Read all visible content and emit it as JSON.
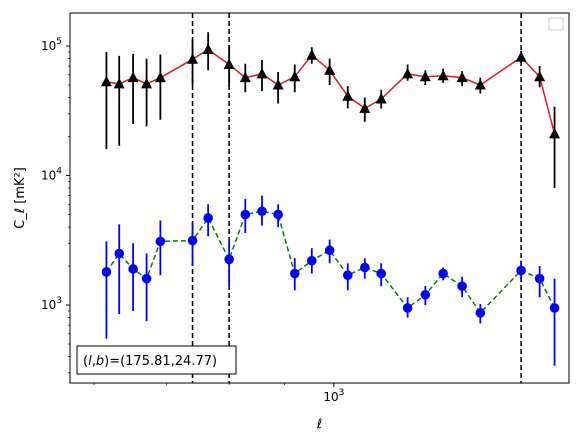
{
  "chart_data": {
    "type": "line",
    "x_scale": "log",
    "y_scale": "log",
    "xlim": [
      570,
      1650
    ],
    "ylim": [
      250,
      180000
    ],
    "xlabel": "ℓ",
    "ylabel": "C_ℓ [mK²]",
    "x_ticks": [
      {
        "value": 1000,
        "base": "10",
        "exp": "3"
      }
    ],
    "y_ticks": [
      {
        "value": 1000,
        "base": "10",
        "exp": "3"
      },
      {
        "value": 10000,
        "base": "10",
        "exp": "4"
      },
      {
        "value": 100000,
        "base": "10",
        "exp": "5"
      }
    ],
    "annotation": "(l,b)=(175.81,24.77)",
    "legend": {
      "location": "top-right",
      "entries": []
    },
    "vlines": [
      {
        "x": 740,
        "style": "dashed",
        "color": "#000000"
      },
      {
        "x": 800,
        "style": "dashed",
        "color": "#000000"
      },
      {
        "x": 1490,
        "style": "dashed",
        "color": "#000000"
      }
    ],
    "series": [
      {
        "line_color": "#e41a1c",
        "marker_color": "#000000",
        "marker": "triangle",
        "line_style": "solid",
        "points": [
          {
            "x": 616,
            "y": 53000,
            "lo": 16000,
            "hi": 90000
          },
          {
            "x": 633,
            "y": 51000,
            "lo": 17000,
            "hi": 84000
          },
          {
            "x": 652,
            "y": 57000,
            "lo": 25000,
            "hi": 87000
          },
          {
            "x": 671,
            "y": 51000,
            "lo": 24000,
            "hi": 80000
          },
          {
            "x": 691,
            "y": 57000,
            "lo": 27000,
            "hi": 86000
          },
          {
            "x": 740,
            "y": 79000,
            "lo": 50000,
            "hi": 112000
          },
          {
            "x": 765,
            "y": 94000,
            "lo": 65000,
            "hi": 128000
          },
          {
            "x": 800,
            "y": 72000,
            "lo": 48000,
            "hi": 100000
          },
          {
            "x": 828,
            "y": 57000,
            "lo": 44000,
            "hi": 73000
          },
          {
            "x": 858,
            "y": 61000,
            "lo": 45000,
            "hi": 78000
          },
          {
            "x": 888,
            "y": 50000,
            "lo": 36000,
            "hi": 63000
          },
          {
            "x": 920,
            "y": 58000,
            "lo": 44000,
            "hi": 72000
          },
          {
            "x": 954,
            "y": 85000,
            "lo": 73000,
            "hi": 98000
          },
          {
            "x": 991,
            "y": 65000,
            "lo": 50000,
            "hi": 80000
          },
          {
            "x": 1030,
            "y": 41000,
            "lo": 33000,
            "hi": 49000
          },
          {
            "x": 1068,
            "y": 33000,
            "lo": 26000,
            "hi": 40000
          },
          {
            "x": 1106,
            "y": 39000,
            "lo": 33000,
            "hi": 46000
          },
          {
            "x": 1170,
            "y": 61000,
            "lo": 54000,
            "hi": 72000
          },
          {
            "x": 1215,
            "y": 58000,
            "lo": 50000,
            "hi": 65000
          },
          {
            "x": 1262,
            "y": 59000,
            "lo": 52000,
            "hi": 67000
          },
          {
            "x": 1314,
            "y": 57000,
            "lo": 49000,
            "hi": 64000
          },
          {
            "x": 1366,
            "y": 50000,
            "lo": 43000,
            "hi": 57000
          },
          {
            "x": 1490,
            "y": 82000,
            "lo": 74000,
            "hi": 92000
          },
          {
            "x": 1550,
            "y": 58000,
            "lo": 48000,
            "hi": 70000
          },
          {
            "x": 1600,
            "y": 21000,
            "lo": 8000,
            "hi": 34000
          }
        ]
      },
      {
        "line_color": "#008000",
        "marker_color": "#0000ff",
        "errorbar_color": "#0000ff",
        "marker": "circle",
        "line_style": "dashed",
        "points": [
          {
            "x": 616,
            "y": 1800,
            "lo": 550,
            "hi": 3100
          },
          {
            "x": 633,
            "y": 2500,
            "lo": 850,
            "hi": 4200
          },
          {
            "x": 652,
            "y": 1900,
            "lo": 900,
            "hi": 3000
          },
          {
            "x": 671,
            "y": 1600,
            "lo": 750,
            "hi": 2500
          },
          {
            "x": 691,
            "y": 3100,
            "lo": 1700,
            "hi": 4500
          },
          {
            "x": 740,
            "y": 3150,
            "lo": 2000,
            "hi": 4300
          },
          {
            "x": 765,
            "y": 4700,
            "lo": 3400,
            "hi": 6000
          },
          {
            "x": 800,
            "y": 2250,
            "lo": 1400,
            "hi": 3100
          },
          {
            "x": 828,
            "y": 5000,
            "lo": 3600,
            "hi": 6600
          },
          {
            "x": 858,
            "y": 5300,
            "lo": 4100,
            "hi": 7000
          },
          {
            "x": 888,
            "y": 5000,
            "lo": 4000,
            "hi": 6000
          },
          {
            "x": 920,
            "y": 1750,
            "lo": 1300,
            "hi": 2300
          },
          {
            "x": 954,
            "y": 2200,
            "lo": 1750,
            "hi": 2750
          },
          {
            "x": 991,
            "y": 2650,
            "lo": 2100,
            "hi": 3200
          },
          {
            "x": 1030,
            "y": 1700,
            "lo": 1300,
            "hi": 2100
          },
          {
            "x": 1068,
            "y": 1950,
            "lo": 1600,
            "hi": 2300
          },
          {
            "x": 1106,
            "y": 1750,
            "lo": 1400,
            "hi": 2100
          },
          {
            "x": 1170,
            "y": 950,
            "lo": 800,
            "hi": 1150
          },
          {
            "x": 1215,
            "y": 1200,
            "lo": 1000,
            "hi": 1400
          },
          {
            "x": 1262,
            "y": 1750,
            "lo": 1550,
            "hi": 1950
          },
          {
            "x": 1314,
            "y": 1400,
            "lo": 1150,
            "hi": 1650
          },
          {
            "x": 1366,
            "y": 870,
            "lo": 720,
            "hi": 1020
          },
          {
            "x": 1490,
            "y": 1850,
            "lo": 1550,
            "hi": 2200
          },
          {
            "x": 1550,
            "y": 1600,
            "lo": 1150,
            "hi": 2000
          },
          {
            "x": 1600,
            "y": 950,
            "lo": 340,
            "hi": 1600
          }
        ]
      }
    ]
  }
}
